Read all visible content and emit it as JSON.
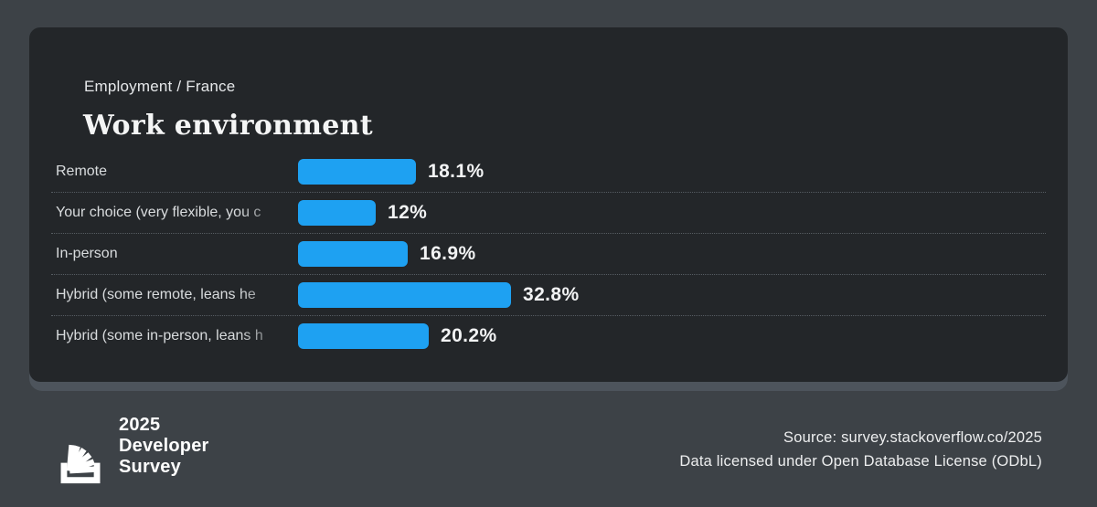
{
  "page": {
    "background": "#3d4247",
    "card_background": "#232629",
    "shelf_color": "#4d545c"
  },
  "card": {
    "breadcrumb": "Employment / France",
    "title": "Work environment",
    "accent": "#1ea1f2"
  },
  "chart_data": {
    "type": "bar",
    "orientation": "horizontal",
    "title": "Work environment",
    "subtitle": "Employment / France",
    "categories": [
      "Remote",
      "Your choice (very flexible, you c",
      "In-person",
      "Hybrid (some remote, leans he",
      "Hybrid (some in-person, leans h"
    ],
    "values": [
      18.1,
      12,
      16.9,
      32.8,
      20.2
    ],
    "value_labels": [
      "18.1%",
      "12%",
      "16.9%",
      "32.8%",
      "20.2%"
    ],
    "unit": "%",
    "bar_color": "#1ea1f2",
    "grid": "dotted-row-separators",
    "legend": "none"
  },
  "footer": {
    "logo_icon": "stackoverflow-logo-icon",
    "brand_line1": "2025",
    "brand_line2": "Developer",
    "brand_line3": "Survey",
    "source_line1": "Source: survey.stackoverflow.co/2025",
    "source_line2": "Data licensed under Open Database License (ODbL)"
  }
}
